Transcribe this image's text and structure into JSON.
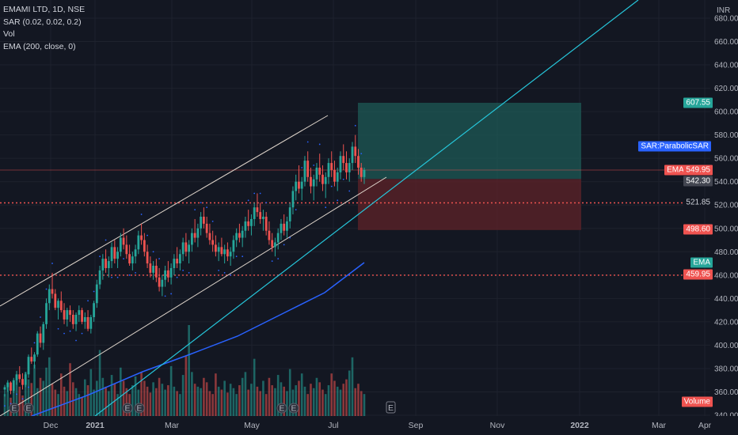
{
  "legend": {
    "symbol": "EMAMI LTD, 1D, NSE",
    "sar": "SAR (0.02, 0.02, 0.2)",
    "vol": "Vol",
    "ema": "EMA (200, close, 0)"
  },
  "currency": "INR",
  "colors": {
    "background": "#131722",
    "up": "#26a69a",
    "down": "#ef5350",
    "ema": "#2962ff",
    "trendline": "#26c6da",
    "channel": "#e0d6cc",
    "sar": "#2962ff",
    "target_zone": "#1d5a55",
    "stop_zone": "#5a2228"
  },
  "price_tags": {
    "target": "607.55",
    "sar": "SAR:ParabolicSAR",
    "symbol_name": "EMAMILTD",
    "symbol_price": "549.95",
    "entry": "542.30",
    "level_1": "521.85",
    "stop": "498.60",
    "ema_name": "EMA",
    "level_2": "459.95",
    "volume": "Volume"
  },
  "events_marker": "E",
  "chart_data": {
    "type": "candlestick",
    "y_axis_ticks": [
      "680.00",
      "660.00",
      "640.00",
      "620.00",
      "600.00",
      "580.00",
      "560.00",
      "540.00",
      "520.00",
      "500.00",
      "480.00",
      "460.00",
      "440.00",
      "420.00",
      "400.00",
      "380.00",
      "360.00",
      "340.00"
    ],
    "ylim": [
      340,
      680
    ],
    "x_axis_ticks": [
      "Dec",
      "2021",
      "Mar",
      "May",
      "Jul",
      "Sep",
      "Nov",
      "2022",
      "Mar",
      "Apr"
    ],
    "last_close": 549.95,
    "horizontal_levels": [
      521.85,
      459.95
    ],
    "long_position": {
      "target": 607.55,
      "entry": 542.3,
      "stop": 498.6
    },
    "candles": [
      [
        362,
        366,
        356,
        364
      ],
      [
        364,
        370,
        360,
        368
      ],
      [
        368,
        369,
        358,
        361
      ],
      [
        361,
        372,
        359,
        370
      ],
      [
        370,
        378,
        366,
        375
      ],
      [
        375,
        382,
        368,
        371
      ],
      [
        371,
        376,
        362,
        366
      ],
      [
        366,
        377,
        364,
        375
      ],
      [
        375,
        392,
        372,
        390
      ],
      [
        390,
        398,
        384,
        386
      ],
      [
        386,
        394,
        380,
        392
      ],
      [
        392,
        412,
        390,
        410
      ],
      [
        410,
        416,
        398,
        402
      ],
      [
        402,
        420,
        396,
        418
      ],
      [
        418,
        440,
        414,
        436
      ],
      [
        436,
        452,
        430,
        448
      ],
      [
        448,
        462,
        440,
        444
      ],
      [
        444,
        448,
        430,
        432
      ],
      [
        432,
        440,
        422,
        438
      ],
      [
        438,
        446,
        428,
        430
      ],
      [
        430,
        436,
        418,
        422
      ],
      [
        422,
        432,
        416,
        430
      ],
      [
        430,
        434,
        420,
        426
      ],
      [
        426,
        430,
        414,
        418
      ],
      [
        418,
        428,
        412,
        426
      ],
      [
        426,
        434,
        420,
        430
      ],
      [
        430,
        432,
        418,
        420
      ],
      [
        420,
        428,
        414,
        424
      ],
      [
        424,
        430,
        412,
        414
      ],
      [
        414,
        426,
        410,
        424
      ],
      [
        424,
        438,
        420,
        436
      ],
      [
        436,
        456,
        432,
        452
      ],
      [
        452,
        468,
        448,
        464
      ],
      [
        464,
        478,
        456,
        474
      ],
      [
        474,
        482,
        462,
        466
      ],
      [
        466,
        476,
        458,
        472
      ],
      [
        472,
        488,
        466,
        484
      ],
      [
        484,
        490,
        470,
        474
      ],
      [
        474,
        484,
        466,
        480
      ],
      [
        480,
        496,
        476,
        492
      ],
      [
        492,
        500,
        482,
        486
      ],
      [
        486,
        494,
        474,
        478
      ],
      [
        478,
        486,
        468,
        470
      ],
      [
        470,
        480,
        464,
        476
      ],
      [
        476,
        486,
        470,
        482
      ],
      [
        482,
        498,
        478,
        494
      ],
      [
        494,
        504,
        486,
        490
      ],
      [
        490,
        496,
        476,
        480
      ],
      [
        480,
        486,
        466,
        470
      ],
      [
        470,
        476,
        458,
        462
      ],
      [
        462,
        472,
        456,
        468
      ],
      [
        468,
        474,
        454,
        458
      ],
      [
        458,
        466,
        446,
        450
      ],
      [
        450,
        460,
        442,
        456
      ],
      [
        456,
        468,
        450,
        464
      ],
      [
        464,
        472,
        454,
        458
      ],
      [
        458,
        470,
        452,
        466
      ],
      [
        466,
        478,
        460,
        474
      ],
      [
        474,
        484,
        466,
        470
      ],
      [
        470,
        482,
        464,
        478
      ],
      [
        478,
        492,
        472,
        488
      ],
      [
        488,
        496,
        476,
        480
      ],
      [
        480,
        490,
        470,
        486
      ],
      [
        486,
        500,
        480,
        496
      ],
      [
        496,
        508,
        488,
        492
      ],
      [
        492,
        504,
        484,
        500
      ],
      [
        500,
        514,
        494,
        510
      ],
      [
        510,
        518,
        500,
        504
      ],
      [
        504,
        510,
        492,
        496
      ],
      [
        496,
        504,
        486,
        490
      ],
      [
        490,
        498,
        480,
        486
      ],
      [
        486,
        494,
        476,
        480
      ],
      [
        480,
        488,
        472,
        484
      ],
      [
        484,
        492,
        476,
        478
      ],
      [
        478,
        486,
        470,
        482
      ],
      [
        482,
        488,
        472,
        476
      ],
      [
        476,
        484,
        468,
        480
      ],
      [
        480,
        494,
        474,
        490
      ],
      [
        490,
        500,
        484,
        496
      ],
      [
        496,
        504,
        488,
        492
      ],
      [
        492,
        502,
        484,
        498
      ],
      [
        498,
        510,
        492,
        506
      ],
      [
        506,
        516,
        498,
        502
      ],
      [
        502,
        512,
        494,
        508
      ],
      [
        508,
        522,
        502,
        518
      ],
      [
        518,
        530,
        510,
        514
      ],
      [
        514,
        522,
        504,
        508
      ],
      [
        508,
        516,
        498,
        510
      ],
      [
        510,
        514,
        494,
        498
      ],
      [
        498,
        506,
        486,
        490
      ],
      [
        490,
        496,
        480,
        484
      ],
      [
        484,
        492,
        476,
        488
      ],
      [
        488,
        500,
        482,
        496
      ],
      [
        496,
        508,
        490,
        504
      ],
      [
        504,
        512,
        494,
        498
      ],
      [
        498,
        510,
        492,
        506
      ],
      [
        506,
        522,
        500,
        518
      ],
      [
        518,
        536,
        512,
        532
      ],
      [
        532,
        546,
        524,
        540
      ],
      [
        540,
        554,
        530,
        534
      ],
      [
        534,
        544,
        524,
        540
      ],
      [
        540,
        562,
        536,
        558
      ],
      [
        558,
        566,
        540,
        544
      ],
      [
        544,
        552,
        530,
        536
      ],
      [
        536,
        546,
        524,
        542
      ],
      [
        542,
        556,
        536,
        552
      ],
      [
        552,
        564,
        540,
        546
      ],
      [
        546,
        554,
        532,
        538
      ],
      [
        538,
        548,
        526,
        544
      ],
      [
        544,
        560,
        538,
        556
      ],
      [
        556,
        566,
        544,
        550
      ],
      [
        550,
        558,
        536,
        540
      ],
      [
        540,
        552,
        532,
        548
      ],
      [
        548,
        566,
        542,
        562
      ],
      [
        562,
        572,
        550,
        556
      ],
      [
        556,
        566,
        542,
        548
      ],
      [
        548,
        560,
        540,
        556
      ],
      [
        556,
        574,
        550,
        570
      ],
      [
        570,
        580,
        556,
        562
      ],
      [
        562,
        568,
        546,
        552
      ],
      [
        552,
        556,
        540,
        544
      ],
      [
        544,
        552,
        538,
        550
      ]
    ],
    "volumes": [
      30,
      42,
      25,
      35,
      55,
      40,
      28,
      60,
      50,
      45,
      70,
      38,
      52,
      48,
      66,
      80,
      44,
      36,
      30,
      58,
      40,
      34,
      72,
      46,
      38,
      30,
      26,
      50,
      42,
      64,
      36,
      48,
      90,
      52,
      40,
      34,
      56,
      44,
      30,
      66,
      48,
      38,
      30,
      42,
      54,
      36,
      60,
      48,
      40,
      32,
      46,
      38,
      52,
      44,
      36,
      42,
      68,
      40,
      34,
      30,
      56,
      82,
      124,
      60,
      44,
      40,
      38,
      52,
      46,
      34,
      30,
      58,
      40,
      36,
      48,
      32,
      44,
      38,
      30,
      42,
      52,
      60,
      36,
      44,
      78,
      40,
      34,
      48,
      30,
      52,
      42,
      38,
      56,
      46,
      40,
      34,
      64,
      36,
      42,
      48,
      58,
      40,
      30,
      44,
      38,
      52,
      46,
      36,
      30,
      42,
      58,
      48,
      40,
      36,
      44,
      50,
      62,
      80,
      38,
      44,
      34,
      30
    ]
  }
}
